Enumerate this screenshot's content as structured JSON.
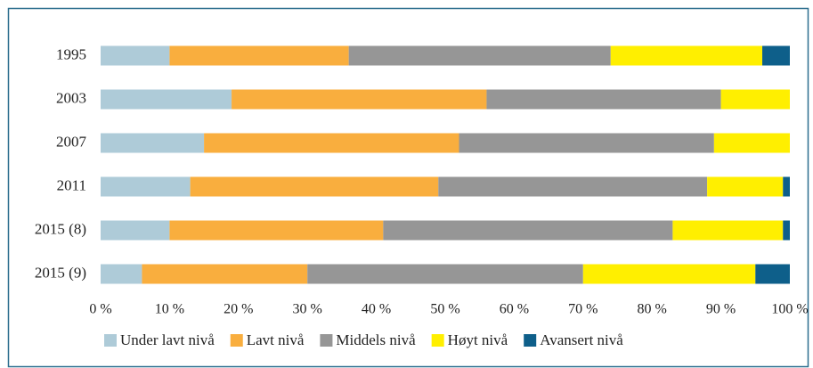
{
  "chart_data": {
    "type": "stacked-barh",
    "categories": [
      "1995",
      "2003",
      "2007",
      "2011",
      "2015 (8)",
      "2015 (9)"
    ],
    "series": [
      {
        "name": "Under lavt nivå",
        "color": "#aecbd8",
        "values": [
          10,
          19,
          15,
          13,
          10,
          6
        ]
      },
      {
        "name": "Lavt nivå",
        "color": "#f9ae3e",
        "values": [
          26,
          37,
          37,
          36,
          31,
          24
        ]
      },
      {
        "name": "Middels nivå",
        "color": "#969696",
        "values": [
          38,
          34,
          37,
          39,
          42,
          40
        ]
      },
      {
        "name": "Høyt nivå",
        "color": "#ffef00",
        "values": [
          22,
          10,
          11,
          11,
          16,
          25
        ]
      },
      {
        "name": "Avansert nivå",
        "color": "#0e5f8a",
        "values": [
          4,
          0,
          0,
          1,
          1,
          5
        ]
      }
    ],
    "xlim": [
      0,
      100
    ],
    "xticks": [
      {
        "value": 0,
        "label": "0 %"
      },
      {
        "value": 10,
        "label": "10 %"
      },
      {
        "value": 20,
        "label": "20 %"
      },
      {
        "value": 30,
        "label": "30 %"
      },
      {
        "value": 40,
        "label": "40 %"
      },
      {
        "value": 50,
        "label": "50 %"
      },
      {
        "value": 60,
        "label": "60 %"
      },
      {
        "value": 70,
        "label": "70 %"
      },
      {
        "value": 80,
        "label": "80 %"
      },
      {
        "value": 90,
        "label": "90 %"
      },
      {
        "value": 100,
        "label": "100 %"
      }
    ],
    "legend": "bottom"
  }
}
